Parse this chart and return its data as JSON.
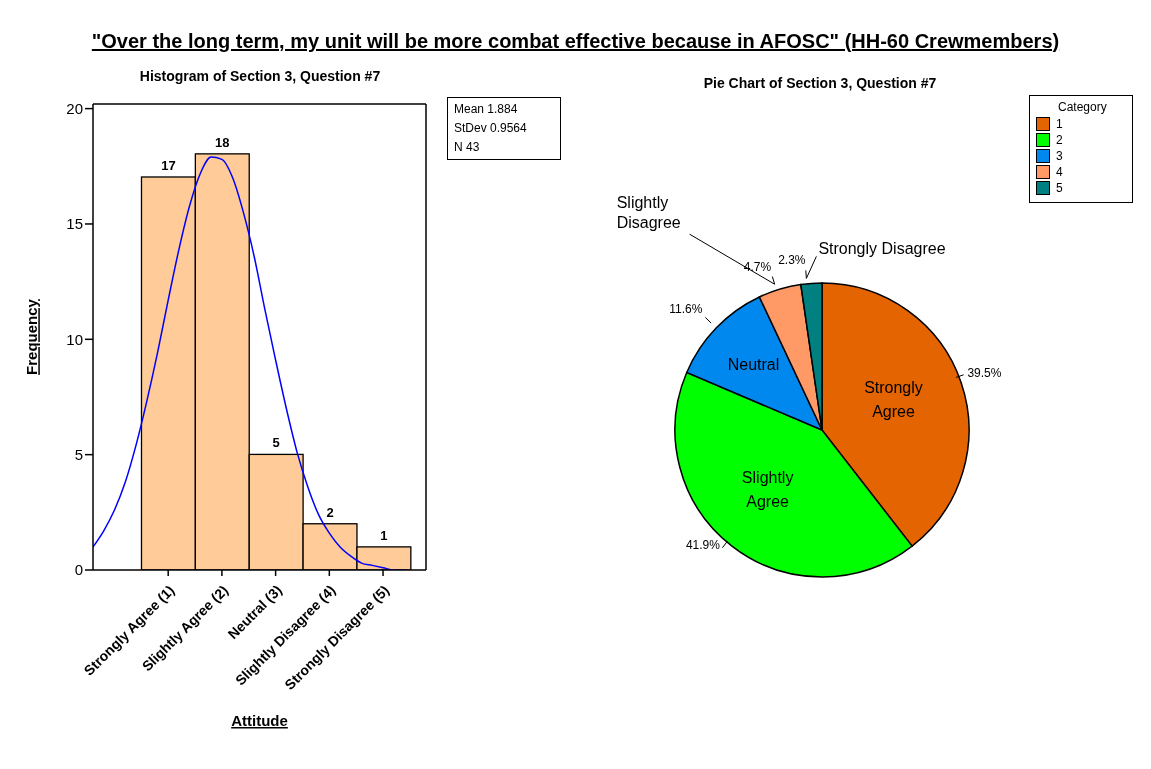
{
  "chart_data": [
    {
      "type": "histogram",
      "title": "\"Over the long term, my unit will be more combat effective because in AFOSC\" (HH-60 Crewmembers)",
      "subtitle": "Histogram of Section 3, Question #7",
      "xlabel": "Attitude",
      "ylabel": "Frequency",
      "bins": [
        0.5,
        1.5,
        2.5,
        3.5,
        4.5,
        5.5
      ],
      "values": [
        17,
        18,
        5,
        2,
        1
      ],
      "color": "#ffcc99",
      "value_labels": [
        "17",
        "18",
        "5",
        "2",
        "1"
      ],
      "xlim": [
        -0.4,
        5.8
      ],
      "xticks": [
        {
          "value": 1,
          "label": "Strongly Agree (1)"
        },
        {
          "value": 2,
          "label": "Slightly Agree (2)"
        },
        {
          "value": 3,
          "label": "Neutral (3)"
        },
        {
          "value": 4,
          "label": "Slightly Disagree (4)"
        },
        {
          "value": 5,
          "label": "Strongly Disagree (5)"
        }
      ],
      "ylim": [
        0,
        20.2
      ],
      "yticks": [
        0,
        5,
        10,
        15,
        20
      ],
      "series": [
        {
          "type": "line",
          "color": "#0000ff",
          "x": [
            -0.4,
            -0.2,
            0,
            0.2,
            0.4,
            0.6,
            0.8,
            1.0,
            1.2,
            1.4,
            1.6,
            1.8,
            2.0,
            2.2,
            2.4,
            2.6,
            2.8,
            3.0,
            3.2,
            3.4,
            3.6,
            3.8,
            4.0,
            4.2,
            4.4,
            4.6,
            4.8,
            5.0,
            5.2,
            5.4
          ],
          "values": [
            1.0,
            1.7,
            2.6,
            3.8,
            5.4,
            7.3,
            9.4,
            11.7,
            13.9,
            15.8,
            17.2,
            17.9,
            17.8,
            17.0,
            15.5,
            13.6,
            11.3,
            9.1,
            7.0,
            5.1,
            3.6,
            2.4,
            1.6,
            1.0,
            0.6,
            0.3,
            0.2,
            0.1,
            0.0,
            0.0
          ]
        }
      ],
      "annotations": [
        "Mean 1.884",
        "StDev 0.9564",
        "N 43"
      ]
    },
    {
      "type": "pie",
      "title": "Pie Chart of Section 3, Question #7",
      "categories": [
        "1",
        "2",
        "3",
        "4",
        "5"
      ],
      "values": [
        39.5,
        41.9,
        11.6,
        4.7,
        2.3
      ],
      "colors": [
        "#e36400",
        "#00ff00",
        "#0088ee",
        "#ff9966",
        "#008080"
      ],
      "value_labels": [
        "39.5%",
        "41.9%",
        "11.6%",
        "4.7%",
        "2.3%"
      ],
      "legend_title": "Category",
      "legend": "top right",
      "annotations": [
        {
          "text": "Strongly Agree",
          "x": "1"
        },
        {
          "text": "Slightly Agree",
          "x": "2"
        },
        {
          "text": "Neutral",
          "x": "3"
        },
        {
          "text": "Slightly Disagree",
          "x": "4"
        },
        {
          "text": "Strongly Disagree",
          "x": "5"
        }
      ]
    }
  ]
}
